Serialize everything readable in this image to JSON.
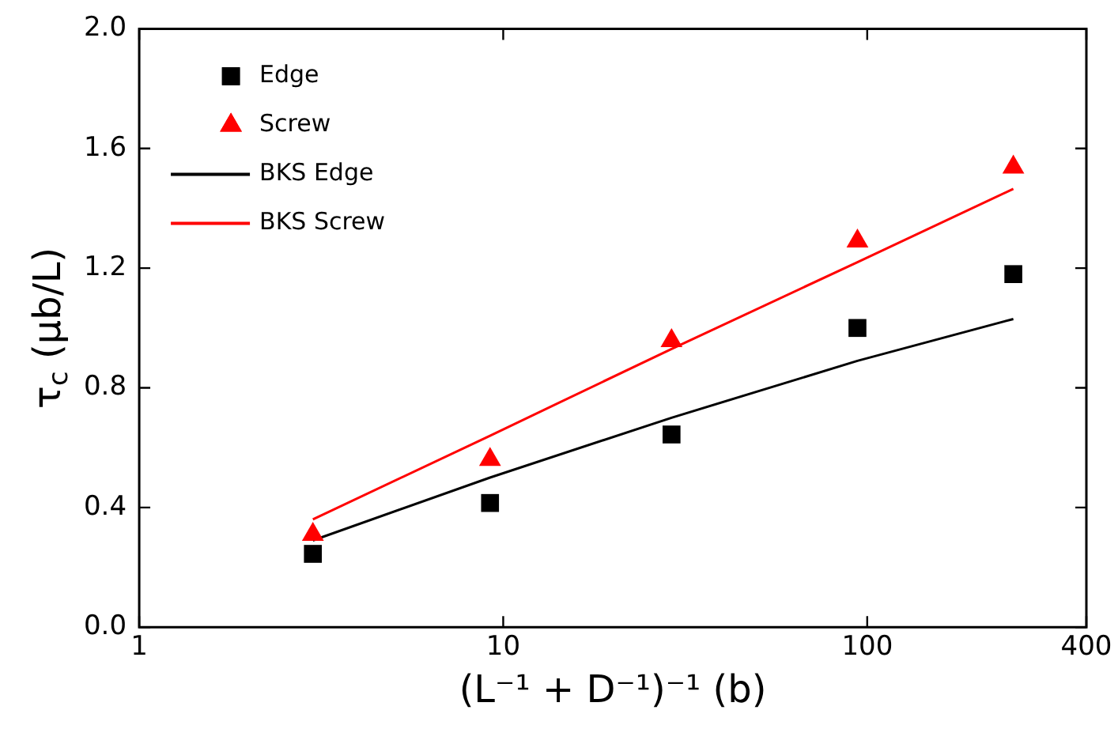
{
  "chart_data": {
    "type": "scatter",
    "xlabel": "(L⁻¹ + D⁻¹)⁻¹ (b)",
    "ylabel": "τ$_{c}$ (μb/L)",
    "log": "x",
    "xlim": [
      1,
      400
    ],
    "xticks": [
      1,
      10,
      100,
      400
    ],
    "ylim": [
      0,
      2
    ],
    "yticks": [
      {
        "value": 0,
        "label": "0.0"
      },
      0.4,
      0.8,
      1.2,
      1.6,
      {
        "value": 2,
        "label": "2.0"
      }
    ],
    "grid": false,
    "legend": "top left",
    "x": [
      3,
      9.2,
      29,
      94,
      252
    ],
    "series": [
      {
        "name": "Edge",
        "marker": "square",
        "color": "#000000",
        "values": [
          0.245,
          0.415,
          0.644,
          1.0,
          1.18
        ]
      },
      {
        "name": "Screw",
        "marker": "triangle",
        "color": "#ff0000",
        "values": [
          0.31,
          0.56,
          0.957,
          1.29,
          1.537
        ]
      },
      {
        "name": "BKS Edge",
        "type": "line",
        "marker": "none",
        "color": "#000000",
        "values": [
          0.29,
          0.5,
          0.7,
          0.89,
          1.03
        ]
      },
      {
        "name": "BKS Screw",
        "type": "line",
        "marker": "none",
        "color": "#ff0000",
        "values": [
          0.36,
          0.64,
          0.93,
          1.22,
          1.465
        ]
      }
    ]
  }
}
